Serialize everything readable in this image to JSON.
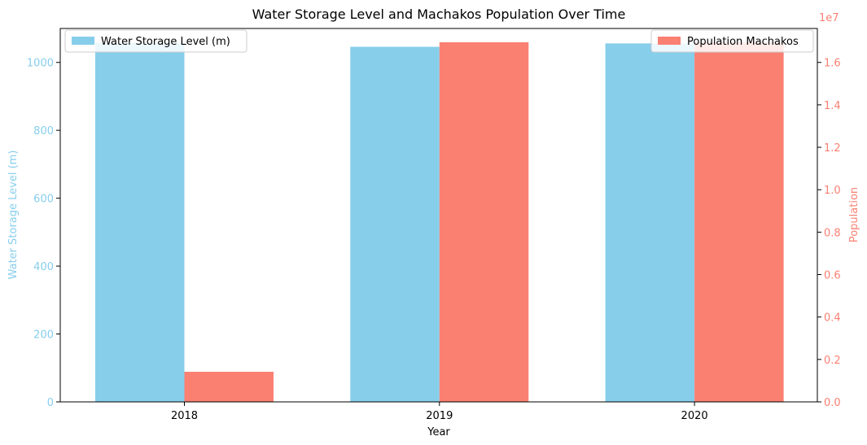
{
  "chart_data": {
    "type": "bar",
    "title": "Water Storage Level and Machakos Population Over Time",
    "xlabel": "Year",
    "categories": [
      "2018",
      "2019",
      "2020"
    ],
    "left_axis": {
      "label": "Water Storage Level (m)",
      "ylim": [
        0,
        1100
      ],
      "ticks": [
        0,
        200,
        400,
        600,
        800,
        1000
      ],
      "tick_labels": [
        "0",
        "200",
        "400",
        "600",
        "800",
        "1000"
      ],
      "color": "#87CEEB"
    },
    "right_axis": {
      "label": "Population",
      "ylim": [
        0,
        17600000
      ],
      "scale_label": "1e7",
      "ticks": [
        0,
        2000000,
        4000000,
        6000000,
        8000000,
        10000000,
        12000000,
        14000000,
        16000000
      ],
      "tick_labels": [
        "0.0",
        "0.2",
        "0.4",
        "0.6",
        "0.8",
        "1.0",
        "1.2",
        "1.4",
        "1.6"
      ],
      "color": "#FA8072"
    },
    "series": [
      {
        "name": "Water Storage Level (m)",
        "axis": "left",
        "color": "#87CEEB",
        "values": [
          1058,
          1046,
          1056
        ]
      },
      {
        "name": "Population Machakos",
        "axis": "right",
        "color": "#FA8072",
        "values": [
          1420000,
          16950000,
          16950000
        ]
      }
    ],
    "legends": [
      {
        "series": 0,
        "placement": "upper-left"
      },
      {
        "series": 1,
        "placement": "upper-right"
      }
    ],
    "grid": false
  }
}
